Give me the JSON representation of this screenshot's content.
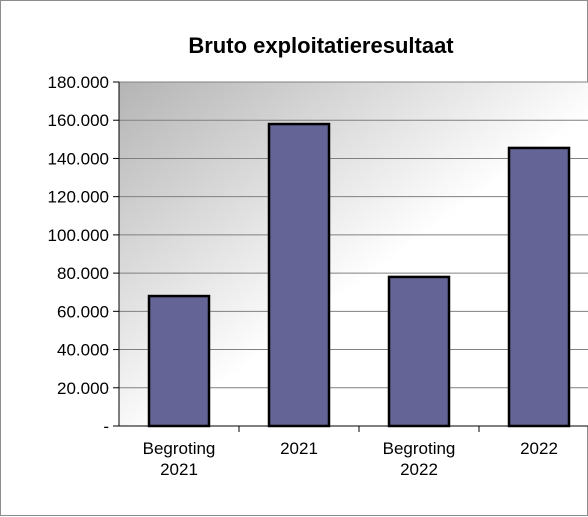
{
  "chart_data": {
    "type": "bar",
    "title": "Bruto exploitatieresultaat",
    "xlabel": "",
    "ylabel": "",
    "categories": [
      [
        "Begroting",
        "2021"
      ],
      [
        "2021"
      ],
      [
        "Begroting",
        "2022"
      ],
      [
        "2022"
      ]
    ],
    "values": [
      68000,
      158000,
      78000,
      145500
    ],
    "ylim": [
      0,
      180000
    ],
    "yticks": [
      0,
      20000,
      40000,
      60000,
      80000,
      100000,
      120000,
      140000,
      160000,
      180000
    ],
    "ytick_labels": [
      "-",
      "20.000",
      "40.000",
      "60.000",
      "80.000",
      "100.000",
      "120.000",
      "140.000",
      "160.000",
      "180.000"
    ],
    "grid": true,
    "legend": false,
    "colors": {
      "bar_fill": "#646496",
      "bar_stroke": "#000000",
      "gridline": "#808080",
      "plot_bg_dark": "#b4b4b4",
      "plot_bg_light": "#ffffff"
    }
  }
}
